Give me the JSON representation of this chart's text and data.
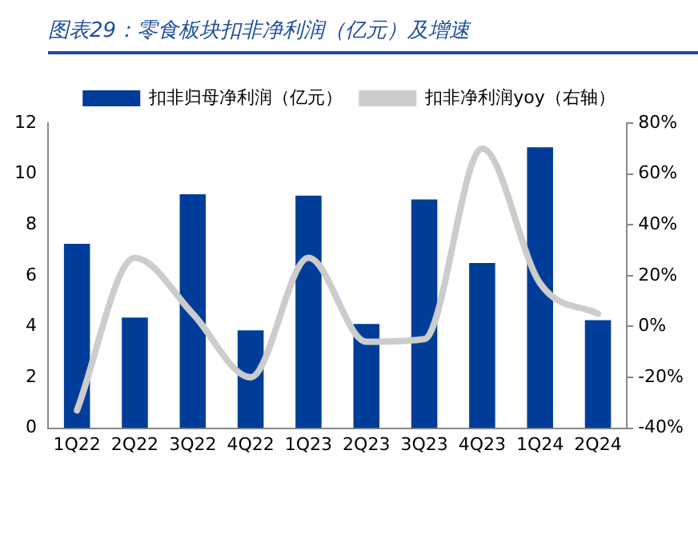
{
  "chart_data": {
    "type": "bar",
    "title": "图表29：零食板块扣非净利润（亿元）及增速",
    "categories": [
      "1Q22",
      "2Q22",
      "3Q22",
      "4Q22",
      "1Q23",
      "2Q23",
      "3Q23",
      "4Q23",
      "1Q24",
      "2Q24"
    ],
    "series": [
      {
        "name": "扣非归母净利润（亿元）",
        "color": "#003d99",
        "values": [
          7.25,
          4.35,
          9.2,
          3.85,
          9.15,
          4.1,
          9.0,
          6.5,
          11.05,
          4.25
        ]
      },
      {
        "name": "扣非净利润yoy（右轴）",
        "type": "line",
        "axis": "y2",
        "color": "#cccccc",
        "values": [
          -33,
          27,
          5,
          -20,
          27,
          -6,
          -5,
          70,
          17,
          5
        ]
      }
    ],
    "ylim": [
      0,
      12
    ],
    "yticks": [
      0,
      2,
      4,
      6,
      8,
      10,
      12
    ],
    "y2lim": [
      -40,
      80
    ],
    "y2ticks": [
      {
        "value": -40,
        "label": "-40%"
      },
      {
        "value": -20,
        "label": "-20%"
      },
      {
        "value": 0,
        "label": "0%"
      },
      {
        "value": 20,
        "label": "20%"
      },
      {
        "value": 40,
        "label": "40%"
      },
      {
        "value": 60,
        "label": "60%"
      },
      {
        "value": 80,
        "label": "80%"
      }
    ],
    "grid": false,
    "legend": "top",
    "marker": "none"
  }
}
